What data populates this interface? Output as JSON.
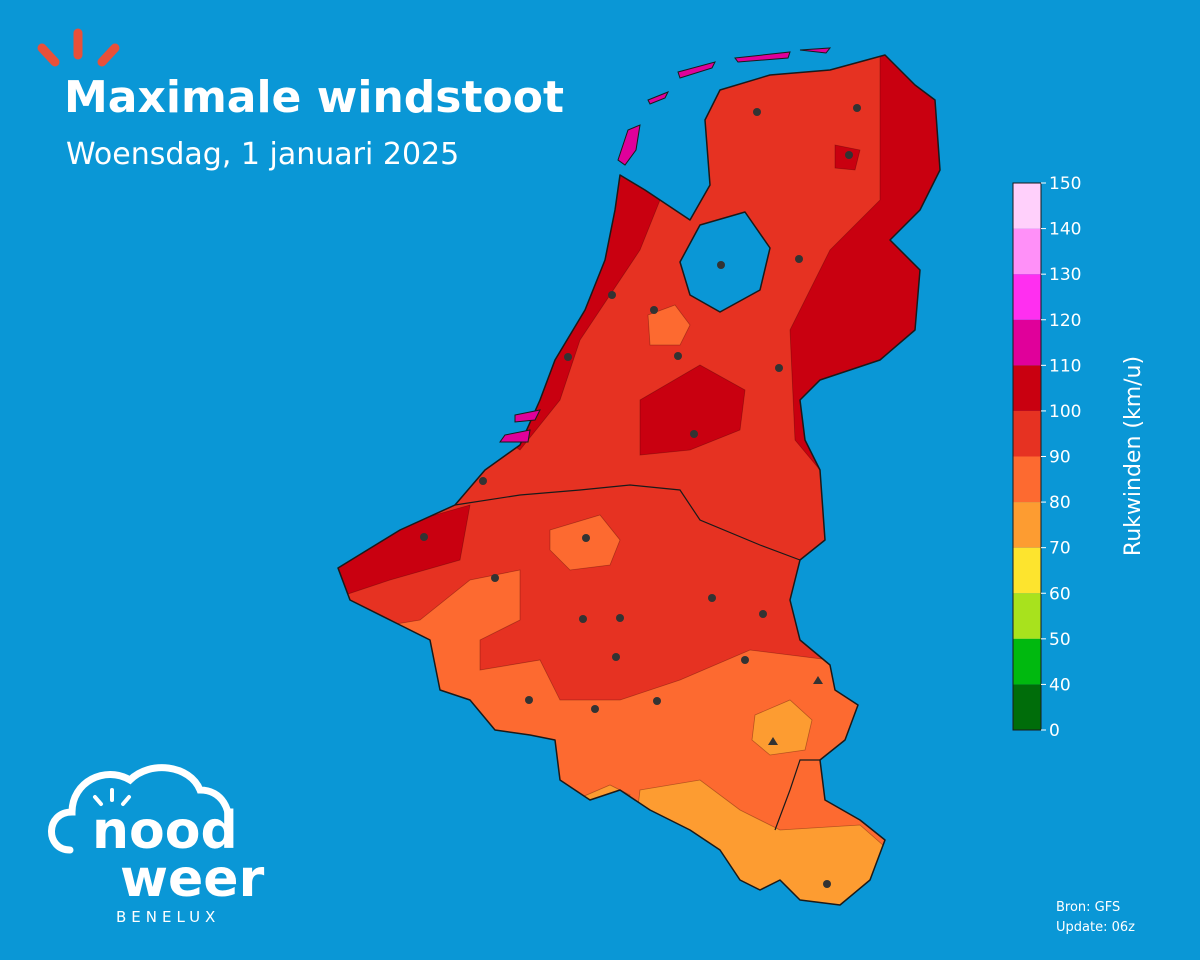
{
  "title": "Maximale windstoot",
  "subtitle": "Woensdag, 1 januari 2025",
  "colorbar": {
    "label": "Rukwinden (km/u)",
    "ticks": [
      0,
      40,
      50,
      60,
      70,
      80,
      90,
      100,
      110,
      120,
      130,
      140,
      150
    ],
    "colors": [
      "#006d0a",
      "#00b90f",
      "#a8e21d",
      "#fde42e",
      "#fd9c31",
      "#fd6a30",
      "#e63222",
      "#c90010",
      "#e0009a",
      "#ff2ff0",
      "#ff90f8",
      "#ffd0fb"
    ]
  },
  "source": "Bron: GFS",
  "update": "Update: 06z",
  "logo": {
    "line1": "nood",
    "line2": "weer",
    "tagline": "BENELUX"
  }
}
